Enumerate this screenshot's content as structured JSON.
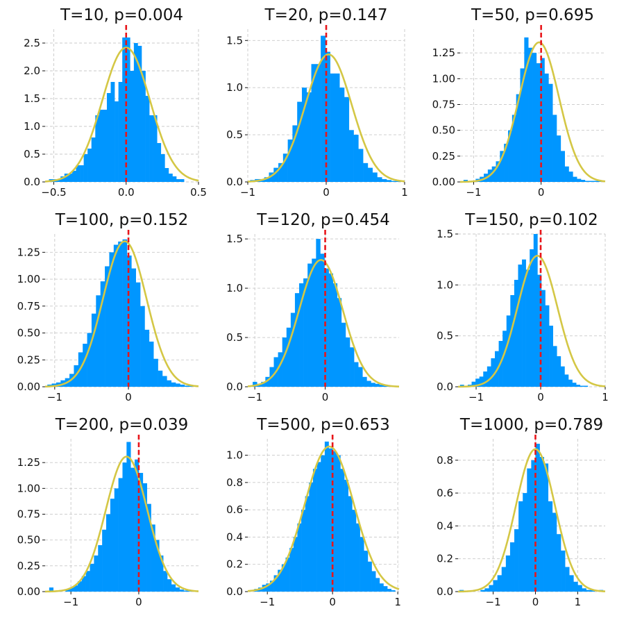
{
  "chart_data": [
    {
      "type": "bar",
      "title": "T=10, p=0.004",
      "xlim": [
        -0.56,
        0.5
      ],
      "ylim": [
        0,
        2.75
      ],
      "xticks": [
        -0.5,
        0.0,
        0.5
      ],
      "xtick_labels": [
        "−0.5",
        "0.0",
        "0.5"
      ],
      "yticks": [
        0,
        0.5,
        1.0,
        1.5,
        2.0,
        2.5
      ],
      "ytick_labels": [
        "0.0",
        "0.5",
        "1.0",
        "1.5",
        "2.0",
        "2.5"
      ],
      "bin_edges": [
        -0.56,
        -0.5333,
        -0.5067,
        -0.48,
        -0.4533,
        -0.4267,
        -0.4,
        -0.3733,
        -0.3467,
        -0.32,
        -0.2933,
        -0.2667,
        -0.24,
        -0.2133,
        -0.1867,
        -0.16,
        -0.1333,
        -0.1067,
        -0.08,
        -0.0533,
        -0.0267,
        0.0,
        0.0267,
        0.0533,
        0.08,
        0.1067,
        0.1333,
        0.16,
        0.1867,
        0.2133,
        0.24,
        0.2667,
        0.2933,
        0.32,
        0.3467,
        0.3733,
        0.4
      ],
      "density": [
        0.0,
        0.05,
        0.05,
        0.05,
        0.1,
        0.15,
        0.15,
        0.2,
        0.3,
        0.3,
        0.5,
        0.6,
        0.8,
        1.2,
        1.3,
        1.3,
        1.6,
        1.8,
        1.45,
        1.8,
        2.6,
        2.6,
        2.0,
        2.5,
        2.45,
        2.0,
        1.55,
        1.2,
        1.2,
        0.7,
        0.5,
        0.25,
        0.15,
        0.1,
        0.05,
        0.05
      ],
      "fit_mean": 0.0,
      "fit_std": 0.165,
      "reference_x": 0.0
    },
    {
      "type": "bar",
      "title": "T=20, p=0.147",
      "xlim": [
        -1.0,
        1.0
      ],
      "ylim": [
        0,
        1.62
      ],
      "xticks": [
        -1,
        0,
        1
      ],
      "xtick_labels": [
        "−1",
        "0",
        "1"
      ],
      "yticks": [
        0,
        0.5,
        1.0,
        1.5
      ],
      "ytick_labels": [
        "0.0",
        "0.5",
        "1.0",
        "1.5"
      ],
      "bin_edges": [
        -0.97,
        -0.91,
        -0.85,
        -0.79,
        -0.73,
        -0.67,
        -0.61,
        -0.55,
        -0.49,
        -0.43,
        -0.37,
        -0.31,
        -0.25,
        -0.19,
        -0.13,
        -0.07,
        -0.01,
        0.05,
        0.11,
        0.17,
        0.23,
        0.29,
        0.35,
        0.41,
        0.47,
        0.53,
        0.59,
        0.65,
        0.71,
        0.77,
        0.83,
        0.89,
        0.95
      ],
      "density": [
        0.02,
        0.03,
        0.03,
        0.05,
        0.1,
        0.15,
        0.2,
        0.3,
        0.45,
        0.6,
        0.85,
        1.0,
        0.95,
        1.25,
        1.25,
        1.55,
        1.38,
        1.15,
        1.15,
        1.0,
        0.9,
        0.55,
        0.5,
        0.35,
        0.2,
        0.15,
        0.1,
        0.05,
        0.03,
        0.02,
        0.01,
        0.01
      ],
      "fit_mean": 0.03,
      "fit_std": 0.295,
      "reference_x": 0.0
    },
    {
      "type": "bar",
      "title": "T=50, p=0.695",
      "xlim": [
        -1.2,
        0.95
      ],
      "ylim": [
        0,
        1.48
      ],
      "xticks": [
        -1,
        0
      ],
      "xtick_labels": [
        "−1",
        "0"
      ],
      "yticks": [
        0,
        0.25,
        0.5,
        0.75,
        1.0,
        1.25
      ],
      "ytick_labels": [
        "0.00",
        "0.25",
        "0.50",
        "0.75",
        "1.00",
        "1.25"
      ],
      "bin_edges": [
        -1.15,
        -1.09,
        -1.03,
        -0.97,
        -0.91,
        -0.85,
        -0.79,
        -0.73,
        -0.67,
        -0.61,
        -0.55,
        -0.49,
        -0.43,
        -0.37,
        -0.31,
        -0.25,
        -0.19,
        -0.13,
        -0.07,
        -0.01,
        0.05,
        0.11,
        0.17,
        0.23,
        0.29,
        0.35,
        0.41,
        0.47,
        0.53,
        0.59,
        0.65,
        0.71,
        0.77,
        0.83,
        0.89
      ],
      "density": [
        0.02,
        0.0,
        0.0,
        0.03,
        0.05,
        0.08,
        0.12,
        0.15,
        0.2,
        0.3,
        0.37,
        0.5,
        0.65,
        0.85,
        1.1,
        1.4,
        1.3,
        1.25,
        1.15,
        1.2,
        1.05,
        0.95,
        0.65,
        0.45,
        0.3,
        0.15,
        0.1,
        0.05,
        0.03,
        0.02,
        0.01,
        0.01,
        0.01,
        0.01
      ],
      "fit_mean": -0.03,
      "fit_std": 0.295,
      "reference_x": 0.0
    },
    {
      "type": "bar",
      "title": "T=100, p=0.152",
      "xlim": [
        -1.13,
        0.95
      ],
      "ylim": [
        0,
        1.42
      ],
      "xticks": [
        -1,
        0
      ],
      "xtick_labels": [
        "−1",
        "0"
      ],
      "yticks": [
        0,
        0.25,
        0.5,
        0.75,
        1.0,
        1.25
      ],
      "ytick_labels": [
        "0.00",
        "0.25",
        "0.50",
        "0.75",
        "1.00",
        "1.25"
      ],
      "bin_edges": [
        -1.1,
        -1.04,
        -0.98,
        -0.92,
        -0.86,
        -0.8,
        -0.74,
        -0.68,
        -0.62,
        -0.56,
        -0.5,
        -0.44,
        -0.38,
        -0.32,
        -0.26,
        -0.2,
        -0.14,
        -0.08,
        -0.02,
        0.04,
        0.1,
        0.16,
        0.22,
        0.28,
        0.34,
        0.4,
        0.46,
        0.52,
        0.58,
        0.64,
        0.7,
        0.76,
        0.82,
        0.88
      ],
      "density": [
        0.02,
        0.03,
        0.04,
        0.06,
        0.08,
        0.12,
        0.2,
        0.32,
        0.4,
        0.5,
        0.68,
        0.85,
        0.98,
        1.12,
        1.25,
        1.32,
        1.35,
        1.37,
        1.22,
        1.1,
        0.97,
        0.75,
        0.53,
        0.42,
        0.26,
        0.15,
        0.1,
        0.06,
        0.04,
        0.03,
        0.02,
        0.01,
        0.01
      ],
      "fit_mean": -0.05,
      "fit_std": 0.295,
      "reference_x": 0.0
    },
    {
      "type": "bar",
      "title": "T=120, p=0.454",
      "xlim": [
        -1.1,
        1.05
      ],
      "ylim": [
        0,
        1.55
      ],
      "xticks": [
        -1,
        0
      ],
      "xtick_labels": [
        "−1",
        "0"
      ],
      "yticks": [
        0,
        0.5,
        1.0,
        1.5
      ],
      "ytick_labels": [
        "0.0",
        "0.5",
        "1.0",
        "1.5"
      ],
      "bin_edges": [
        -1.03,
        -0.97,
        -0.91,
        -0.85,
        -0.79,
        -0.73,
        -0.67,
        -0.61,
        -0.55,
        -0.49,
        -0.43,
        -0.37,
        -0.31,
        -0.25,
        -0.19,
        -0.13,
        -0.07,
        -0.01,
        0.05,
        0.11,
        0.17,
        0.23,
        0.29,
        0.35,
        0.41,
        0.47,
        0.53,
        0.59,
        0.65,
        0.71,
        0.77,
        0.83,
        0.89,
        0.95,
        1.01
      ],
      "density": [
        0.05,
        0.03,
        0.05,
        0.1,
        0.2,
        0.3,
        0.35,
        0.5,
        0.6,
        0.75,
        0.95,
        1.05,
        1.1,
        1.25,
        1.3,
        1.5,
        1.35,
        1.2,
        1.15,
        1.05,
        0.9,
        0.65,
        0.5,
        0.4,
        0.25,
        0.2,
        0.1,
        0.06,
        0.04,
        0.03,
        0.02,
        0.01,
        0.01,
        0.01
      ],
      "fit_mean": -0.06,
      "fit_std": 0.31,
      "reference_x": 0.0
    },
    {
      "type": "bar",
      "title": "T=150, p=0.102",
      "xlim": [
        -1.28,
        1.0
      ],
      "ylim": [
        0,
        1.5
      ],
      "xticks": [
        -1,
        0,
        1
      ],
      "xtick_labels": [
        "−1",
        "0",
        "1"
      ],
      "yticks": [
        0,
        0.5,
        1.0,
        1.5
      ],
      "ytick_labels": [
        "0.0",
        "0.5",
        "1.0",
        "1.5"
      ],
      "bin_edges": [
        -1.25,
        -1.19,
        -1.13,
        -1.07,
        -1.01,
        -0.95,
        -0.89,
        -0.83,
        -0.77,
        -0.71,
        -0.65,
        -0.59,
        -0.53,
        -0.47,
        -0.41,
        -0.35,
        -0.29,
        -0.23,
        -0.17,
        -0.11,
        -0.05,
        0.01,
        0.07,
        0.13,
        0.19,
        0.25,
        0.31,
        0.37,
        0.43,
        0.49,
        0.55,
        0.61,
        0.67,
        0.73
      ],
      "density": [
        0.02,
        0.0,
        0.02,
        0.05,
        0.08,
        0.1,
        0.15,
        0.2,
        0.28,
        0.35,
        0.45,
        0.55,
        0.7,
        0.9,
        1.05,
        1.2,
        1.25,
        1.15,
        1.35,
        1.5,
        1.1,
        0.95,
        0.8,
        0.6,
        0.4,
        0.3,
        0.2,
        0.12,
        0.07,
        0.04,
        0.02,
        0.01,
        0.01
      ],
      "fit_mean": -0.05,
      "fit_std": 0.31,
      "reference_x": 0.0
    },
    {
      "type": "bar",
      "title": "T=200, p=0.039",
      "xlim": [
        -1.38,
        0.88
      ],
      "ylim": [
        0,
        1.48
      ],
      "xticks": [
        -1,
        0
      ],
      "xtick_labels": [
        "−1",
        "0"
      ],
      "yticks": [
        0,
        0.25,
        0.5,
        0.75,
        1.0,
        1.25
      ],
      "ytick_labels": [
        "0.00",
        "0.25",
        "0.50",
        "0.75",
        "1.00",
        "1.25"
      ],
      "bin_edges": [
        -1.32,
        -1.26,
        -1.2,
        -1.14,
        -1.08,
        -1.02,
        -0.96,
        -0.9,
        -0.84,
        -0.78,
        -0.72,
        -0.66,
        -0.6,
        -0.54,
        -0.48,
        -0.42,
        -0.36,
        -0.3,
        -0.24,
        -0.18,
        -0.12,
        -0.06,
        0.0,
        0.06,
        0.12,
        0.18,
        0.24,
        0.3,
        0.36,
        0.42,
        0.48,
        0.54,
        0.6,
        0.66,
        0.72,
        0.78
      ],
      "density": [
        0.04,
        0.0,
        0.0,
        0.0,
        0.02,
        0.04,
        0.06,
        0.1,
        0.15,
        0.2,
        0.27,
        0.35,
        0.45,
        0.6,
        0.75,
        0.9,
        1.0,
        1.1,
        1.25,
        1.45,
        1.2,
        1.28,
        1.15,
        1.05,
        0.85,
        0.65,
        0.5,
        0.35,
        0.2,
        0.12,
        0.07,
        0.04,
        0.02,
        0.01,
        0.01
      ],
      "fit_mean": -0.18,
      "fit_std": 0.305,
      "reference_x": 0.0
    },
    {
      "type": "bar",
      "title": "T=500, p=0.653",
      "xlim": [
        -1.3,
        1.02
      ],
      "ylim": [
        0,
        1.12
      ],
      "xticks": [
        -1,
        0,
        1
      ],
      "xtick_labels": [
        "−1",
        "0",
        "1"
      ],
      "yticks": [
        0,
        0.2,
        0.4,
        0.6,
        0.8,
        1.0
      ],
      "ytick_labels": [
        "0.0",
        "0.2",
        "0.4",
        "0.6",
        "0.8",
        "1.0"
      ],
      "bin_edges": [
        -1.2,
        -1.14,
        -1.08,
        -1.02,
        -0.96,
        -0.9,
        -0.84,
        -0.78,
        -0.72,
        -0.66,
        -0.6,
        -0.54,
        -0.48,
        -0.42,
        -0.36,
        -0.3,
        -0.24,
        -0.18,
        -0.12,
        -0.06,
        0.0,
        0.06,
        0.12,
        0.18,
        0.24,
        0.3,
        0.36,
        0.42,
        0.48,
        0.54,
        0.6,
        0.66,
        0.72,
        0.78,
        0.84,
        0.9,
        0.96
      ],
      "density": [
        0.02,
        0.03,
        0.05,
        0.06,
        0.08,
        0.12,
        0.16,
        0.2,
        0.25,
        0.32,
        0.4,
        0.5,
        0.6,
        0.7,
        0.8,
        0.9,
        0.95,
        1.0,
        1.1,
        1.05,
        1.03,
        1.0,
        0.9,
        0.82,
        0.7,
        0.6,
        0.5,
        0.4,
        0.3,
        0.22,
        0.15,
        0.1,
        0.06,
        0.04,
        0.02,
        0.01
      ],
      "fit_mean": -0.05,
      "fit_std": 0.375,
      "reference_x": 0.0
    },
    {
      "type": "bar",
      "title": "T=1000, p=0.789",
      "xlim": [
        -1.83,
        1.65
      ],
      "ylim": [
        0,
        0.93
      ],
      "xticks": [
        -1,
        0,
        1
      ],
      "xtick_labels": [
        "−1",
        "0",
        "1"
      ],
      "yticks": [
        0,
        0.2,
        0.4,
        0.6,
        0.8
      ],
      "ytick_labels": [
        "0.0",
        "0.2",
        "0.4",
        "0.6",
        "0.8"
      ],
      "bin_edges": [
        -1.8,
        -1.7,
        -1.6,
        -1.5,
        -1.4,
        -1.3,
        -1.2,
        -1.1,
        -1.0,
        -0.9,
        -0.8,
        -0.7,
        -0.6,
        -0.5,
        -0.4,
        -0.3,
        -0.2,
        -0.1,
        0.0,
        0.1,
        0.2,
        0.3,
        0.4,
        0.5,
        0.6,
        0.7,
        0.8,
        0.9,
        1.0,
        1.1,
        1.2,
        1.3,
        1.4,
        1.5,
        1.6
      ],
      "density": [
        0.01,
        0.0,
        0.0,
        0.0,
        0.0,
        0.01,
        0.02,
        0.04,
        0.07,
        0.1,
        0.15,
        0.22,
        0.3,
        0.38,
        0.55,
        0.6,
        0.75,
        0.8,
        0.9,
        0.82,
        0.78,
        0.55,
        0.48,
        0.35,
        0.25,
        0.15,
        0.1,
        0.06,
        0.04,
        0.02,
        0.01,
        0.01,
        0.0,
        0.01
      ],
      "fit_mean": 0.0,
      "fit_std": 0.46,
      "reference_x": 0.0
    }
  ]
}
